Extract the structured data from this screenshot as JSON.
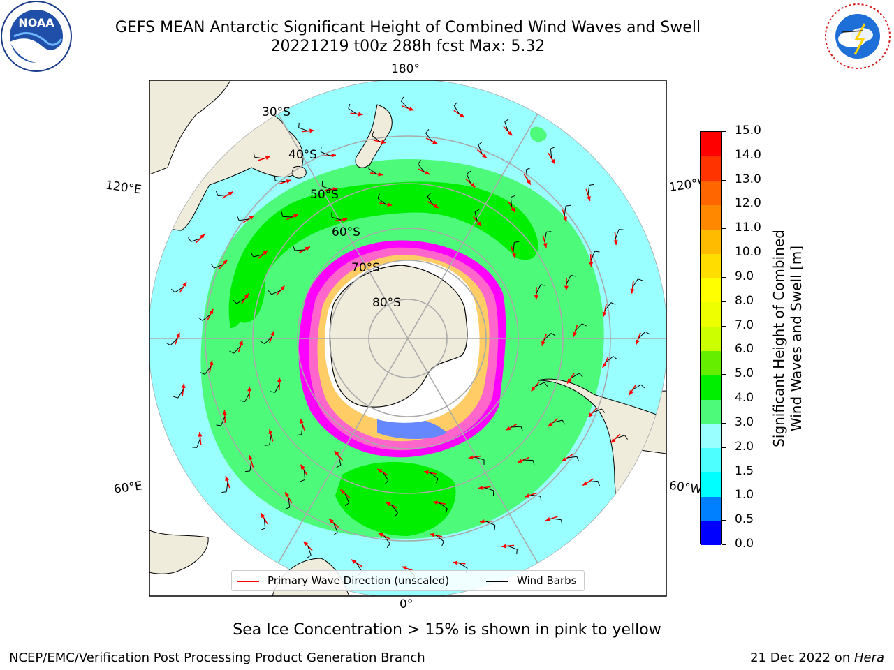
{
  "title": {
    "line1": "GEFS MEAN Antarctic Significant Height of Combined Wind Waves and Swell",
    "line2": "20221219 t00z 288h fcst   Max: 5.32"
  },
  "logos": {
    "noaa": {
      "text": "NOAA",
      "ring_text": "NATIONAL OCEANIC AND ATMOSPHERIC ADMINISTRATION · U.S. DEPARTMENT OF COMMERCE"
    },
    "nws": {
      "ring_text": "NATIONAL WEATHER SERVICE"
    }
  },
  "map": {
    "projection": "south-polar-stereographic",
    "lon_labels": {
      "top": "180°",
      "bottom": "0°",
      "upper_left": "120°E",
      "upper_right": "120°W",
      "lower_left": "60°E",
      "lower_right": "60°W"
    },
    "lat_labels": [
      "30°S",
      "40°S",
      "50°S",
      "60°S",
      "70°S",
      "80°S"
    ],
    "latitude_circles_deg": [
      -30,
      -40,
      -50,
      -60,
      -70,
      -80
    ],
    "meridian_spacing_deg": 60,
    "max_value": 5.32,
    "colors": {
      "land": "#efecdc",
      "ocean_2_3": "#99ffff",
      "ocean_3_4": "#4dfa7a",
      "ocean_4_5": "#00ee00",
      "ice_high": "#ffffff",
      "ice_mid": "#ff66cc",
      "ice_low": "#ff00ff",
      "ice_blue": "#6688ff",
      "ice_yellow": "#ffcc66"
    }
  },
  "colorbar": {
    "label_line1": "Significant Height of Combined",
    "label_line2": "Wind Waves and Swell [m]",
    "ticks": [
      "0.0",
      "0.5",
      "1.0",
      "1.5",
      "2.0",
      "3.0",
      "4.0",
      "5.0",
      "6.0",
      "7.0",
      "8.0",
      "9.0",
      "10.0",
      "11.0",
      "12.0",
      "13.0",
      "14.0",
      "15.0"
    ],
    "colors": [
      "#0000ff",
      "#0080ff",
      "#00ffff",
      "#4dffff",
      "#99ffff",
      "#4dfa7a",
      "#00ee00",
      "#66ee00",
      "#ccff00",
      "#eeff00",
      "#ffff00",
      "#ffdd00",
      "#ffbb00",
      "#ff8800",
      "#ff6600",
      "#ff3300",
      "#ff0000"
    ]
  },
  "legend": {
    "wave_label": "Primary Wave Direction (unscaled)",
    "wave_color": "#ff0000",
    "barb_label": "Wind Barbs",
    "barb_color": "#000000"
  },
  "caption": "Sea Ice Concentration > 15% is shown in pink to yellow",
  "footer": {
    "left": "NCEP/EMC/Verification Post Processing Product Generation Branch",
    "date": "21 Dec 2022 on ",
    "host": "Hera"
  }
}
